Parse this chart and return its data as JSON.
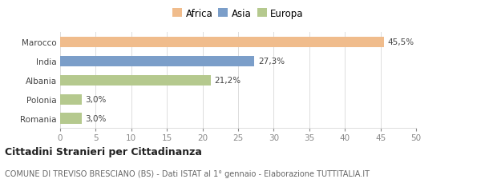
{
  "categories": [
    "Romania",
    "Polonia",
    "Albania",
    "India",
    "Marocco"
  ],
  "values": [
    3.0,
    3.0,
    21.2,
    27.3,
    45.5
  ],
  "labels": [
    "3,0%",
    "3,0%",
    "21,2%",
    "27,3%",
    "45,5%"
  ],
  "colors": [
    "#b5c98e",
    "#b5c98e",
    "#b5c98e",
    "#7b9ec9",
    "#f0bc8c"
  ],
  "legend": [
    {
      "label": "Africa",
      "color": "#f0bc8c"
    },
    {
      "label": "Asia",
      "color": "#7b9ec9"
    },
    {
      "label": "Europa",
      "color": "#b5c98e"
    }
  ],
  "xlim": [
    0,
    50
  ],
  "xticks": [
    0,
    5,
    10,
    15,
    20,
    25,
    30,
    35,
    40,
    45,
    50
  ],
  "title_bold": "Cittadini Stranieri per Cittadinanza",
  "subtitle": "COMUNE DI TREVISO BRESCIANO (BS) - Dati ISTAT al 1° gennaio - Elaborazione TUTTITALIA.IT",
  "background_color": "#ffffff",
  "grid_color": "#dddddd",
  "bar_height": 0.55,
  "label_fontsize": 7.5,
  "tick_fontsize": 7.5,
  "legend_fontsize": 8.5,
  "title_fontsize": 9,
  "subtitle_fontsize": 7
}
